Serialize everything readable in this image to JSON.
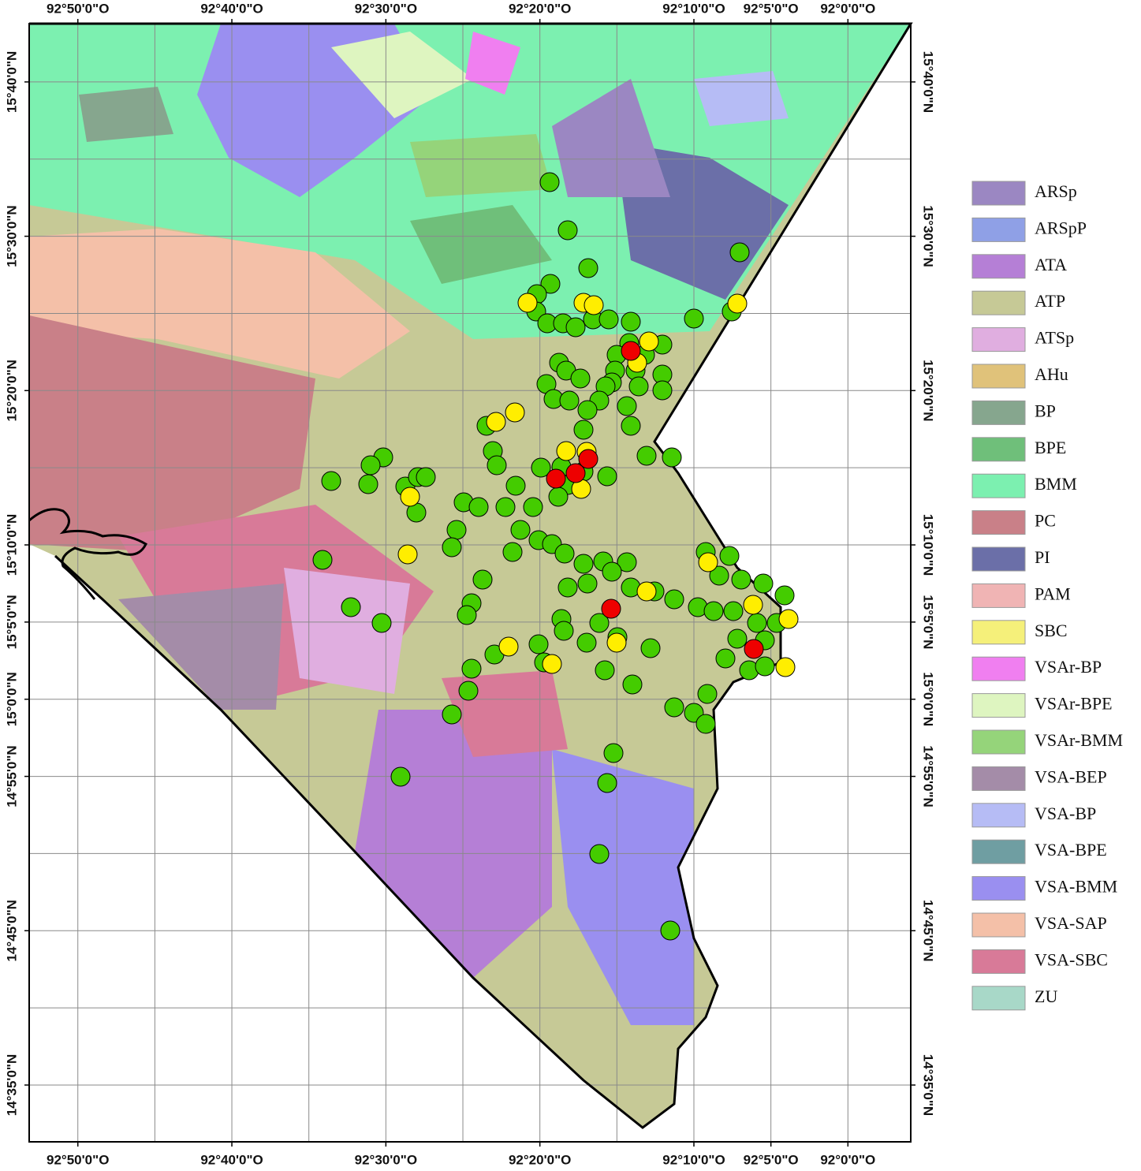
{
  "map": {
    "xlim": [
      -92.886,
      -91.932
    ],
    "ylim": [
      14.522,
      15.7296
    ],
    "xticks": [
      {
        "value": -92.833333,
        "label": "92°50'0\"O"
      },
      {
        "value": -92.666667,
        "label": "92°40'0\"O"
      },
      {
        "value": -92.5,
        "label": "92°30'0\"O"
      },
      {
        "value": -92.333333,
        "label": "92°20'0\"O"
      },
      {
        "value": -92.166667,
        "label": "92°10'0\"O"
      },
      {
        "value": -92.083333,
        "label": "92°5'0\"O"
      },
      {
        "value": -92.0,
        "label": "92°0'0\"O"
      }
    ],
    "yticks": [
      {
        "value": 15.666667,
        "label": "15°40'0\"N"
      },
      {
        "value": 15.5,
        "label": "15°30'0\"N"
      },
      {
        "value": 15.333333,
        "label": "15°20'0\"N"
      },
      {
        "value": 15.166667,
        "label": "15°10'0\"N"
      },
      {
        "value": 15.083333,
        "label": "15°5'0\"N"
      },
      {
        "value": 15.0,
        "label": "15°0'0\"N"
      },
      {
        "value": 14.916667,
        "label": "14°55'0\"N"
      },
      {
        "value": 14.75,
        "label": "14°45'0\"N"
      },
      {
        "value": 14.583333,
        "label": "14°35'0\"N"
      }
    ],
    "legend": [
      {
        "label": "ARSp",
        "color": "#9b87c2"
      },
      {
        "label": "ARSpP",
        "color": "#8fa0e6"
      },
      {
        "label": "ATA",
        "color": "#b57fd6"
      },
      {
        "label": "ATP",
        "color": "#c6c996"
      },
      {
        "label": "ATSp",
        "color": "#e0aee0"
      },
      {
        "label": "AHu",
        "color": "#e0c27a"
      },
      {
        "label": "BP",
        "color": "#86a68e"
      },
      {
        "label": "BPE",
        "color": "#6fbf7a"
      },
      {
        "label": "BMM",
        "color": "#7cf0b0"
      },
      {
        "label": "PC",
        "color": "#c98088"
      },
      {
        "label": "PI",
        "color": "#6b6fa8"
      },
      {
        "label": "PAM",
        "color": "#f0b4b4"
      },
      {
        "label": "SBC",
        "color": "#f5f07a"
      },
      {
        "label": "VSAr-BP",
        "color": "#f07ff0"
      },
      {
        "label": "VSAr-BPE",
        "color": "#def5c0"
      },
      {
        "label": "VSAr-BMM",
        "color": "#95d47a"
      },
      {
        "label": "VSA-BEP",
        "color": "#a48ca8"
      },
      {
        "label": "VSA-BP",
        "color": "#b6bcf5"
      },
      {
        "label": "VSA-BPE",
        "color": "#6f9ea2"
      },
      {
        "label": "VSA-BMM",
        "color": "#9a8ff0"
      },
      {
        "label": "VSA-SAP",
        "color": "#f4c0a8"
      },
      {
        "label": "VSA-SBC",
        "color": "#d87a98"
      },
      {
        "label": "ZU",
        "color": "#a8d8c8"
      }
    ]
  }
}
